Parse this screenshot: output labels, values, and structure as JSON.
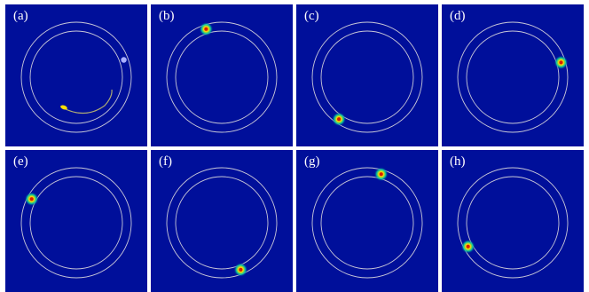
{
  "panels": [
    {
      "label": "(a)",
      "spot_angle_deg": 20,
      "extra": "trail"
    },
    {
      "label": "(b)",
      "spot_angle_deg": 108
    },
    {
      "label": "(c)",
      "spot_angle_deg": 236
    },
    {
      "label": "(d)",
      "spot_angle_deg": 17
    },
    {
      "label": "(e)",
      "spot_angle_deg": 152
    },
    {
      "label": "(f)",
      "spot_angle_deg": 292
    },
    {
      "label": "(g)",
      "spot_angle_deg": 74
    },
    {
      "label": "(h)",
      "spot_angle_deg": 208
    }
  ],
  "colors": {
    "background": "#000f9a",
    "ring": "#c8c8d8",
    "spot_core": "#d81e00",
    "spot_mid": "#ffe000",
    "spot_outer": "#00d2a0",
    "trail": "#d9d26a"
  }
}
